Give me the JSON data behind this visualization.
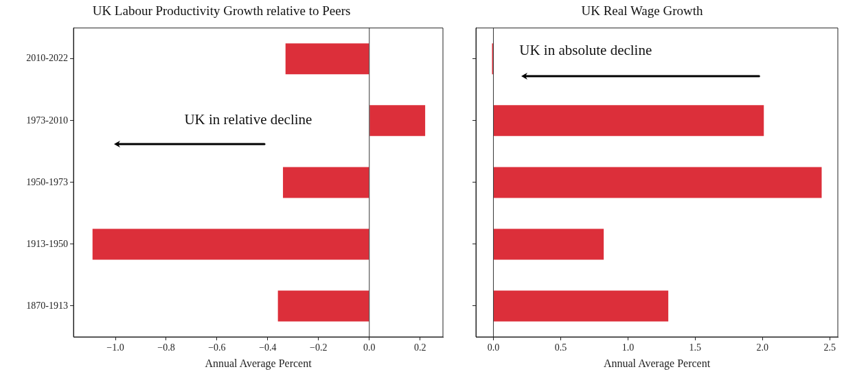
{
  "chart_data": [
    {
      "type": "bar",
      "orientation": "horizontal",
      "title": "UK Labour Productivity Growth relative to Peers",
      "xlabel": "Annual Average Percent",
      "categories": [
        "2010-2022",
        "1973-2010",
        "1950-1973",
        "1913-1950",
        "1870-1913"
      ],
      "values": [
        -0.33,
        0.22,
        -0.34,
        -1.09,
        -0.36
      ],
      "color": "#dc2f3a",
      "xlim": [
        -1.165,
        0.29
      ],
      "xticks": [
        {
          "value": -1.0,
          "label": "−1.0"
        },
        {
          "value": -0.8,
          "label": "−0.8"
        },
        {
          "value": -0.6,
          "label": "−0.6"
        },
        {
          "value": -0.4,
          "label": "−0.4"
        },
        {
          "value": -0.2,
          "label": "−0.2"
        },
        {
          "value": 0,
          "label": "0.0"
        },
        {
          "value": 0.2,
          "label": "0.2"
        }
      ],
      "ref_lines": [
        {
          "axis": "x",
          "value": 0,
          "color": "#000000"
        }
      ],
      "annotations": [
        "UK in relative decline"
      ]
    },
    {
      "type": "bar",
      "orientation": "horizontal",
      "title": "UK Real Wage Growth",
      "xlabel": "Annual Average Percent",
      "values": [
        -0.01,
        2.01,
        2.44,
        0.82,
        1.3
      ],
      "color": "#dc2f3a",
      "categories": [
        null,
        null,
        null,
        null,
        null
      ],
      "xlim": [
        -0.13,
        2.56
      ],
      "xticks": [
        {
          "value": 0,
          "label": "0.0"
        },
        {
          "value": 0.5,
          "label": "0.5"
        },
        {
          "value": 1,
          "label": "1.0"
        },
        {
          "value": 1.5,
          "label": "1.5"
        },
        {
          "value": 2,
          "label": "2.0"
        },
        {
          "value": 2.5,
          "label": "2.5"
        }
      ],
      "ref_lines": [
        {
          "axis": "x",
          "value": 0,
          "color": "#000000"
        }
      ],
      "tick_labels": "x",
      "annotations": [
        "UK in absolute decline"
      ]
    }
  ]
}
